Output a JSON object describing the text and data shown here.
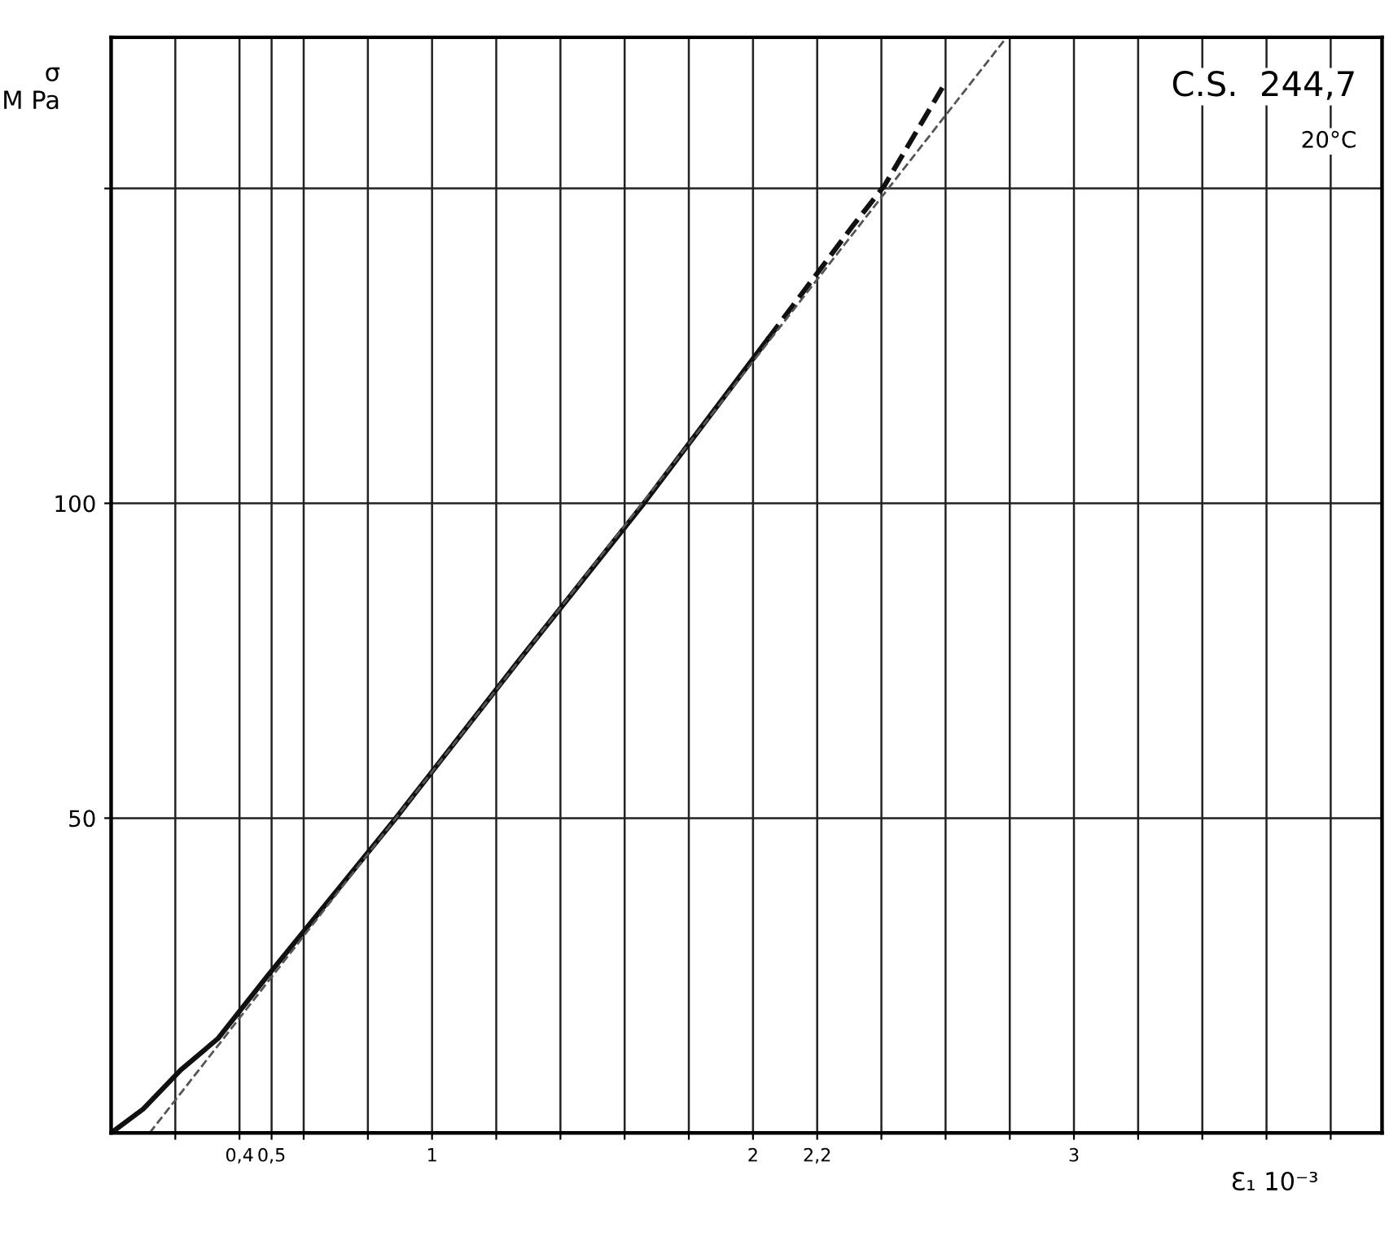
{
  "chart_data": {
    "type": "line",
    "ylabel": "σ\nM Pa",
    "xlabel": "Ɛ₁ 10⁻³",
    "annotations": [
      "C.S.  244,7",
      "20°C"
    ],
    "xlim": [
      0,
      3.96
    ],
    "ylim": [
      0,
      174
    ],
    "xticks": [
      {
        "value": 0.2,
        "label": null
      },
      {
        "value": 0.4,
        "label": "0,4"
      },
      {
        "value": 0.5,
        "label": "0,5"
      },
      {
        "value": 0.6,
        "label": null
      },
      {
        "value": 0.8,
        "label": null
      },
      1,
      {
        "value": 1.2,
        "label": null
      },
      {
        "value": 1.4,
        "label": null
      },
      {
        "value": 1.6,
        "label": null
      },
      {
        "value": 1.8,
        "label": null
      },
      2,
      {
        "value": 2.2,
        "label": "2,2"
      },
      {
        "value": 2.4,
        "label": null
      },
      {
        "value": 2.6,
        "label": null
      },
      {
        "value": 2.8,
        "label": null
      },
      3,
      {
        "value": 3.2,
        "label": null
      },
      {
        "value": 3.4,
        "label": null
      },
      {
        "value": 3.6,
        "label": null
      },
      {
        "value": 3.8,
        "label": null
      }
    ],
    "yticks": [
      50,
      100,
      {
        "value": 150,
        "label": null
      }
    ],
    "grid": true,
    "series": [
      {
        "color": "#111111",
        "line_style": "solid",
        "x": [
          0,
          0.1,
          0.217,
          0.333,
          0.485,
          0.884,
          1.27,
          1.66,
          2.045
        ],
        "values": [
          0,
          3.8,
          10,
          15,
          24.8,
          49.8,
          75,
          100,
          126
        ]
      },
      {
        "color": "#111111",
        "line_style": "dashed",
        "x": [
          2.045,
          2.31,
          2.41,
          2.59
        ],
        "values": [
          126,
          144,
          150.5,
          166
        ]
      },
      {
        "color": "#555555",
        "line_style": "dashed",
        "x": [
          0.12,
          2.79
        ],
        "values": [
          0,
          174
        ]
      }
    ]
  }
}
